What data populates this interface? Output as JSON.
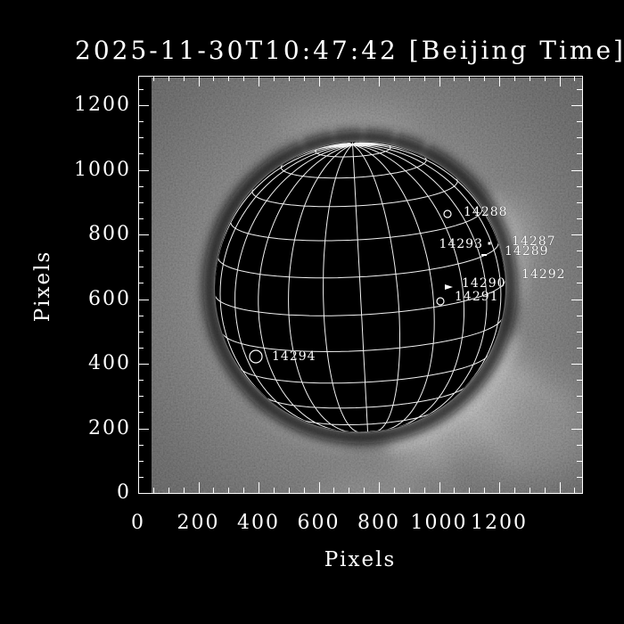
{
  "title": "2025-11-30T10:47:42 [Beijing Time]",
  "axes": {
    "xlabel": "Pixels",
    "ylabel": "Pixels",
    "xticks": [
      0,
      200,
      400,
      600,
      800,
      1000,
      1200
    ],
    "yticks": [
      0,
      200,
      400,
      600,
      800,
      1000,
      1200
    ]
  },
  "active_regions": [
    {
      "id": "14288",
      "marker": "circle",
      "r": 4,
      "mx": 502,
      "my": 240,
      "lx": 520,
      "ly": 238,
      "align": "left"
    },
    {
      "id": "14293",
      "marker": "dot",
      "r": 0,
      "mx": 549,
      "my": 273,
      "lx": 542,
      "ly": 274,
      "align": "right"
    },
    {
      "id": "14287",
      "marker": "none",
      "r": 0,
      "mx": 0,
      "my": 0,
      "lx": 574,
      "ly": 271,
      "align": "left"
    },
    {
      "id": "14289",
      "marker": "dash",
      "r": 0,
      "mx": 543,
      "my": 286,
      "lx": 566,
      "ly": 282,
      "align": "left"
    },
    {
      "id": "14292",
      "marker": "none",
      "r": 0,
      "mx": 0,
      "my": 0,
      "lx": 585,
      "ly": 308,
      "align": "left"
    },
    {
      "id": "14290",
      "marker": "triangle",
      "r": 0,
      "mx": 503,
      "my": 322,
      "lx": 518,
      "ly": 318,
      "align": "left"
    },
    {
      "id": "14291",
      "marker": "circle",
      "r": 4,
      "mx": 494,
      "my": 338,
      "lx": 510,
      "ly": 333,
      "align": "left"
    },
    {
      "id": "14294",
      "marker": "circle",
      "r": 7,
      "mx": 287,
      "my": 400,
      "lx": 305,
      "ly": 400,
      "align": "left"
    }
  ],
  "chart_data": {
    "type": "heatmap",
    "title": "2025-11-30T10:47:42 [Beijing Time]",
    "xlabel": "Pixels",
    "ylabel": "Pixels",
    "xlim": [
      0,
      1475
    ],
    "ylim": [
      0,
      1290
    ],
    "xticks": [
      0,
      200,
      400,
      600,
      800,
      1000,
      1200
    ],
    "yticks": [
      0,
      200,
      400,
      600,
      800,
      1000,
      1200
    ],
    "minor_tick_step": 50,
    "grid": "heliographic latitude/longitude wireframe overlay, 15 degree spacing",
    "content": "Occulted white-light solar corona image: black occulting disk centered near data (740,640), bright coronal streamers at top, east limb and south-east quadrant, numbered active-region annotations",
    "annotations": [
      {
        "label": "14288",
        "x": 1030,
        "y": 865
      },
      {
        "label": "14293",
        "x": 1165,
        "y": 770
      },
      {
        "label": "14287",
        "x": 1240,
        "y": 780
      },
      {
        "label": "14289",
        "x": 1150,
        "y": 735
      },
      {
        "label": "14292",
        "x": 1275,
        "y": 675
      },
      {
        "label": "14290",
        "x": 1030,
        "y": 635
      },
      {
        "label": "14291",
        "x": 1005,
        "y": 595
      },
      {
        "label": "14294",
        "x": 390,
        "y": 420
      }
    ],
    "colors": {
      "background": "#000000",
      "axes": "#ffffff",
      "grid_overlay": "#ffffff",
      "corona_mid_gray": "#5a5a5a"
    }
  }
}
